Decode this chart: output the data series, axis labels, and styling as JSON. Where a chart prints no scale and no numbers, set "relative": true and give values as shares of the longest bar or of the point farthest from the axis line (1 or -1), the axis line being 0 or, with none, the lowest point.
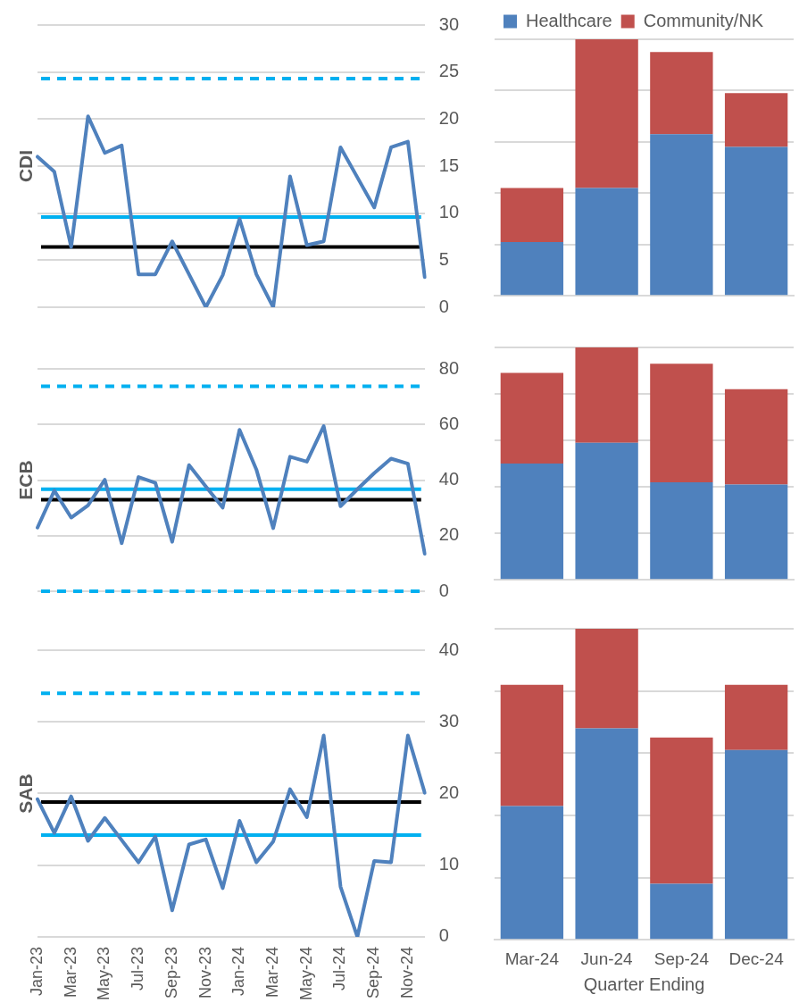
{
  "chart_data": [
    {
      "type": "line",
      "ylabel": "CDI",
      "categories": [
        null,
        null,
        null,
        null,
        null,
        null,
        null,
        null,
        null,
        null,
        null,
        null,
        null,
        null,
        null,
        null,
        null,
        null,
        null,
        null,
        null,
        null,
        null,
        null
      ],
      "series": [
        {
          "color": "#4f81bd",
          "values": [
            16,
            14.4,
            6.4,
            20.3,
            16.4,
            17.2,
            3.5,
            3.5,
            7,
            3.5,
            0,
            3.4,
            9.4,
            3.5,
            0,
            13.9,
            6.6,
            7,
            17,
            13.8,
            10.6,
            17,
            17.6,
            3.2
          ]
        }
      ],
      "ylim": [
        0,
        30
      ],
      "yticks": [
        0,
        5,
        10,
        15,
        20,
        25,
        30
      ],
      "grid": "y",
      "marker": "none",
      "ref_lines": [
        {
          "axis": "y",
          "value": 24.3,
          "color": "#00b0f0",
          "line_style": "dashed"
        },
        {
          "axis": "y",
          "value": 9.6,
          "color": "#00b0f0",
          "line_style": "solid"
        },
        {
          "axis": "y",
          "value": 6.4,
          "color": "#000000",
          "line_style": "solid"
        }
      ]
    },
    {
      "type": "bar",
      "stacked": true,
      "relative": true,
      "categories": [
        null,
        null,
        null,
        null
      ],
      "series": [
        {
          "name": "Healthcare",
          "color": "#4f81bd",
          "values": [
            0.21,
            0.42,
            0.63,
            0.58
          ]
        },
        {
          "name": "Community/NK",
          "color": "#c0504d",
          "values": [
            0.21,
            0.58,
            0.32,
            0.21
          ]
        }
      ],
      "grid": "y",
      "legend": "top"
    },
    {
      "type": "line",
      "ylabel": "ECB",
      "categories": [
        null,
        null,
        null,
        null,
        null,
        null,
        null,
        null,
        null,
        null,
        null,
        null,
        null,
        null,
        null,
        null,
        null,
        null,
        null,
        null,
        null,
        null,
        null,
        null
      ],
      "series": [
        {
          "color": "#4f81bd",
          "values": [
            22.9,
            36.2,
            26.5,
            30.9,
            40.1,
            17.3,
            41.1,
            39,
            17.8,
            45.4,
            37.7,
            30.1,
            58.1,
            43.8,
            22.7,
            48.4,
            46.6,
            59.4,
            30.6,
            36.7,
            42.5,
            47.7,
            45.9,
            13.5
          ]
        }
      ],
      "ylim": [
        0,
        80
      ],
      "yticks": [
        0,
        20,
        40,
        60,
        80
      ],
      "grid": "y",
      "marker": "none",
      "ref_lines": [
        {
          "axis": "y",
          "value": 73.7,
          "color": "#00b0f0",
          "line_style": "dashed"
        },
        {
          "axis": "y",
          "value": 36.7,
          "color": "#00b0f0",
          "line_style": "solid"
        },
        {
          "axis": "y",
          "value": 32.9,
          "color": "#000000",
          "line_style": "solid"
        },
        {
          "axis": "y",
          "value": 0,
          "color": "#00b0f0",
          "line_style": "dashed"
        }
      ]
    },
    {
      "type": "bar",
      "stacked": true,
      "relative": true,
      "categories": [
        null,
        null,
        null,
        null
      ],
      "series": [
        {
          "color": "#4f81bd",
          "values": [
            0.5,
            0.59,
            0.42,
            0.41
          ]
        },
        {
          "color": "#c0504d",
          "values": [
            0.39,
            0.41,
            0.51,
            0.41
          ]
        }
      ],
      "grid": "y"
    },
    {
      "type": "line",
      "ylabel": "SAB",
      "categories": [
        "Jan-23",
        null,
        "Mar-23",
        null,
        "May-23",
        null,
        "Jul-23",
        null,
        "Sep-23",
        null,
        "Nov-23",
        null,
        "Jan-24",
        null,
        "Mar-24",
        null,
        "May-24",
        null,
        "Jul-24",
        null,
        "Sep-24",
        null,
        "Nov-24",
        null
      ],
      "series": [
        {
          "color": "#4f81bd",
          "values": [
            19.2,
            14.5,
            19.6,
            13.4,
            16.6,
            13.5,
            10.4,
            14,
            3.7,
            12.9,
            13.6,
            6.8,
            16.2,
            10.4,
            13.3,
            20.6,
            16.7,
            28.1,
            7,
            0,
            10.6,
            10.4,
            28.1,
            20.1
          ]
        }
      ],
      "ylim": [
        0,
        40
      ],
      "yticks": [
        0,
        10,
        20,
        30,
        40
      ],
      "grid": "y",
      "marker": "none",
      "ref_lines": [
        {
          "axis": "y",
          "value": 34,
          "color": "#00b0f0",
          "line_style": "dashed"
        },
        {
          "axis": "y",
          "value": 18.8,
          "color": "#000000",
          "line_style": "solid"
        },
        {
          "axis": "y",
          "value": 14.2,
          "color": "#00b0f0",
          "line_style": "solid"
        }
      ]
    },
    {
      "type": "bar",
      "stacked": true,
      "relative": true,
      "xlabel": "Quarter Ending",
      "categories": [
        "Mar-24",
        "Jun-24",
        "Sep-24",
        "Dec-24"
      ],
      "series": [
        {
          "color": "#4f81bd",
          "values": [
            0.43,
            0.68,
            0.18,
            0.61
          ]
        },
        {
          "color": "#c0504d",
          "values": [
            0.39,
            0.32,
            0.47,
            0.21
          ]
        }
      ],
      "grid": "y",
      "tick_labels": "x"
    }
  ]
}
